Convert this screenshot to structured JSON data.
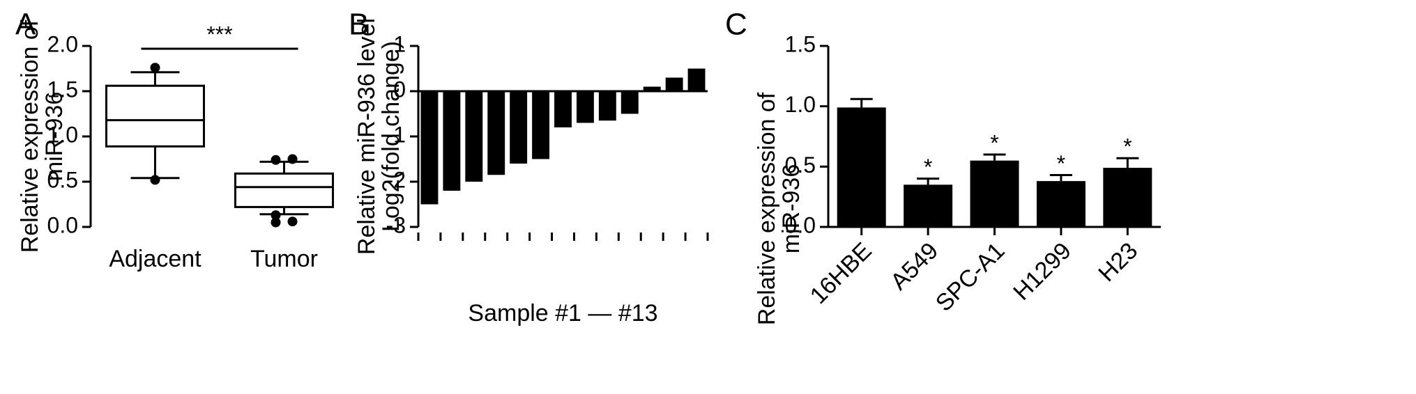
{
  "chart_data": [
    {
      "type": "box",
      "panel_label": "A",
      "ylabel": [
        "Relative expression of",
        "miR-936"
      ],
      "categories": [
        "Adjacent",
        "Tumor"
      ],
      "boxes": [
        {
          "whislo": 0.54,
          "q1": 0.89,
          "med": 1.18,
          "q3": 1.56,
          "whishi": 1.71,
          "fliers": [
            1.76,
            0.52
          ]
        },
        {
          "whislo": 0.14,
          "q1": 0.22,
          "med": 0.44,
          "q3": 0.59,
          "whishi": 0.72,
          "fliers": [
            0.74,
            0.75,
            0.13,
            0.06,
            0.05
          ]
        }
      ],
      "significance": "***",
      "color": "#000000",
      "ylim": [
        0,
        2
      ],
      "yticks": [
        {
          "value": 0,
          "label": "0.0"
        },
        0.5,
        {
          "value": 1,
          "label": "1.0"
        },
        1.5,
        {
          "value": 2,
          "label": "2.0"
        }
      ]
    },
    {
      "type": "bar",
      "panel_label": "B",
      "ylabel": [
        "Relative miR-936 level",
        "Log2(fold change)"
      ],
      "xlabel": "Sample #1 — #13",
      "categories": [
        null,
        null,
        null,
        null,
        null,
        null,
        null,
        null,
        null,
        null,
        null,
        null,
        null
      ],
      "values": [
        -2.5,
        -2.2,
        -2.0,
        -1.85,
        -1.6,
        -1.5,
        -0.8,
        -0.7,
        -0.65,
        -0.5,
        0.1,
        0.3,
        0.5
      ],
      "color": "#000000",
      "ylim": [
        -3,
        1
      ],
      "yticks": [
        -3,
        -2,
        -1,
        0,
        1
      ]
    },
    {
      "type": "bar",
      "panel_label": "C",
      "ylabel": [
        "Relative expression of",
        "miR-936"
      ],
      "categories": [
        "16HBE",
        "A549",
        "SPC-A1",
        "H1299",
        "H23"
      ],
      "values": [
        0.99,
        0.35,
        0.55,
        0.38,
        0.49
      ],
      "errors": [
        0.07,
        0.05,
        0.05,
        0.05,
        0.08
      ],
      "markers": [
        null,
        "*",
        "*",
        "*",
        "*"
      ],
      "color": "#000000",
      "ylim": [
        0,
        1.5
      ],
      "yticks": [
        {
          "value": 0,
          "label": "0.0"
        },
        0.5,
        {
          "value": 1,
          "label": "1.0"
        },
        1.5
      ]
    }
  ]
}
